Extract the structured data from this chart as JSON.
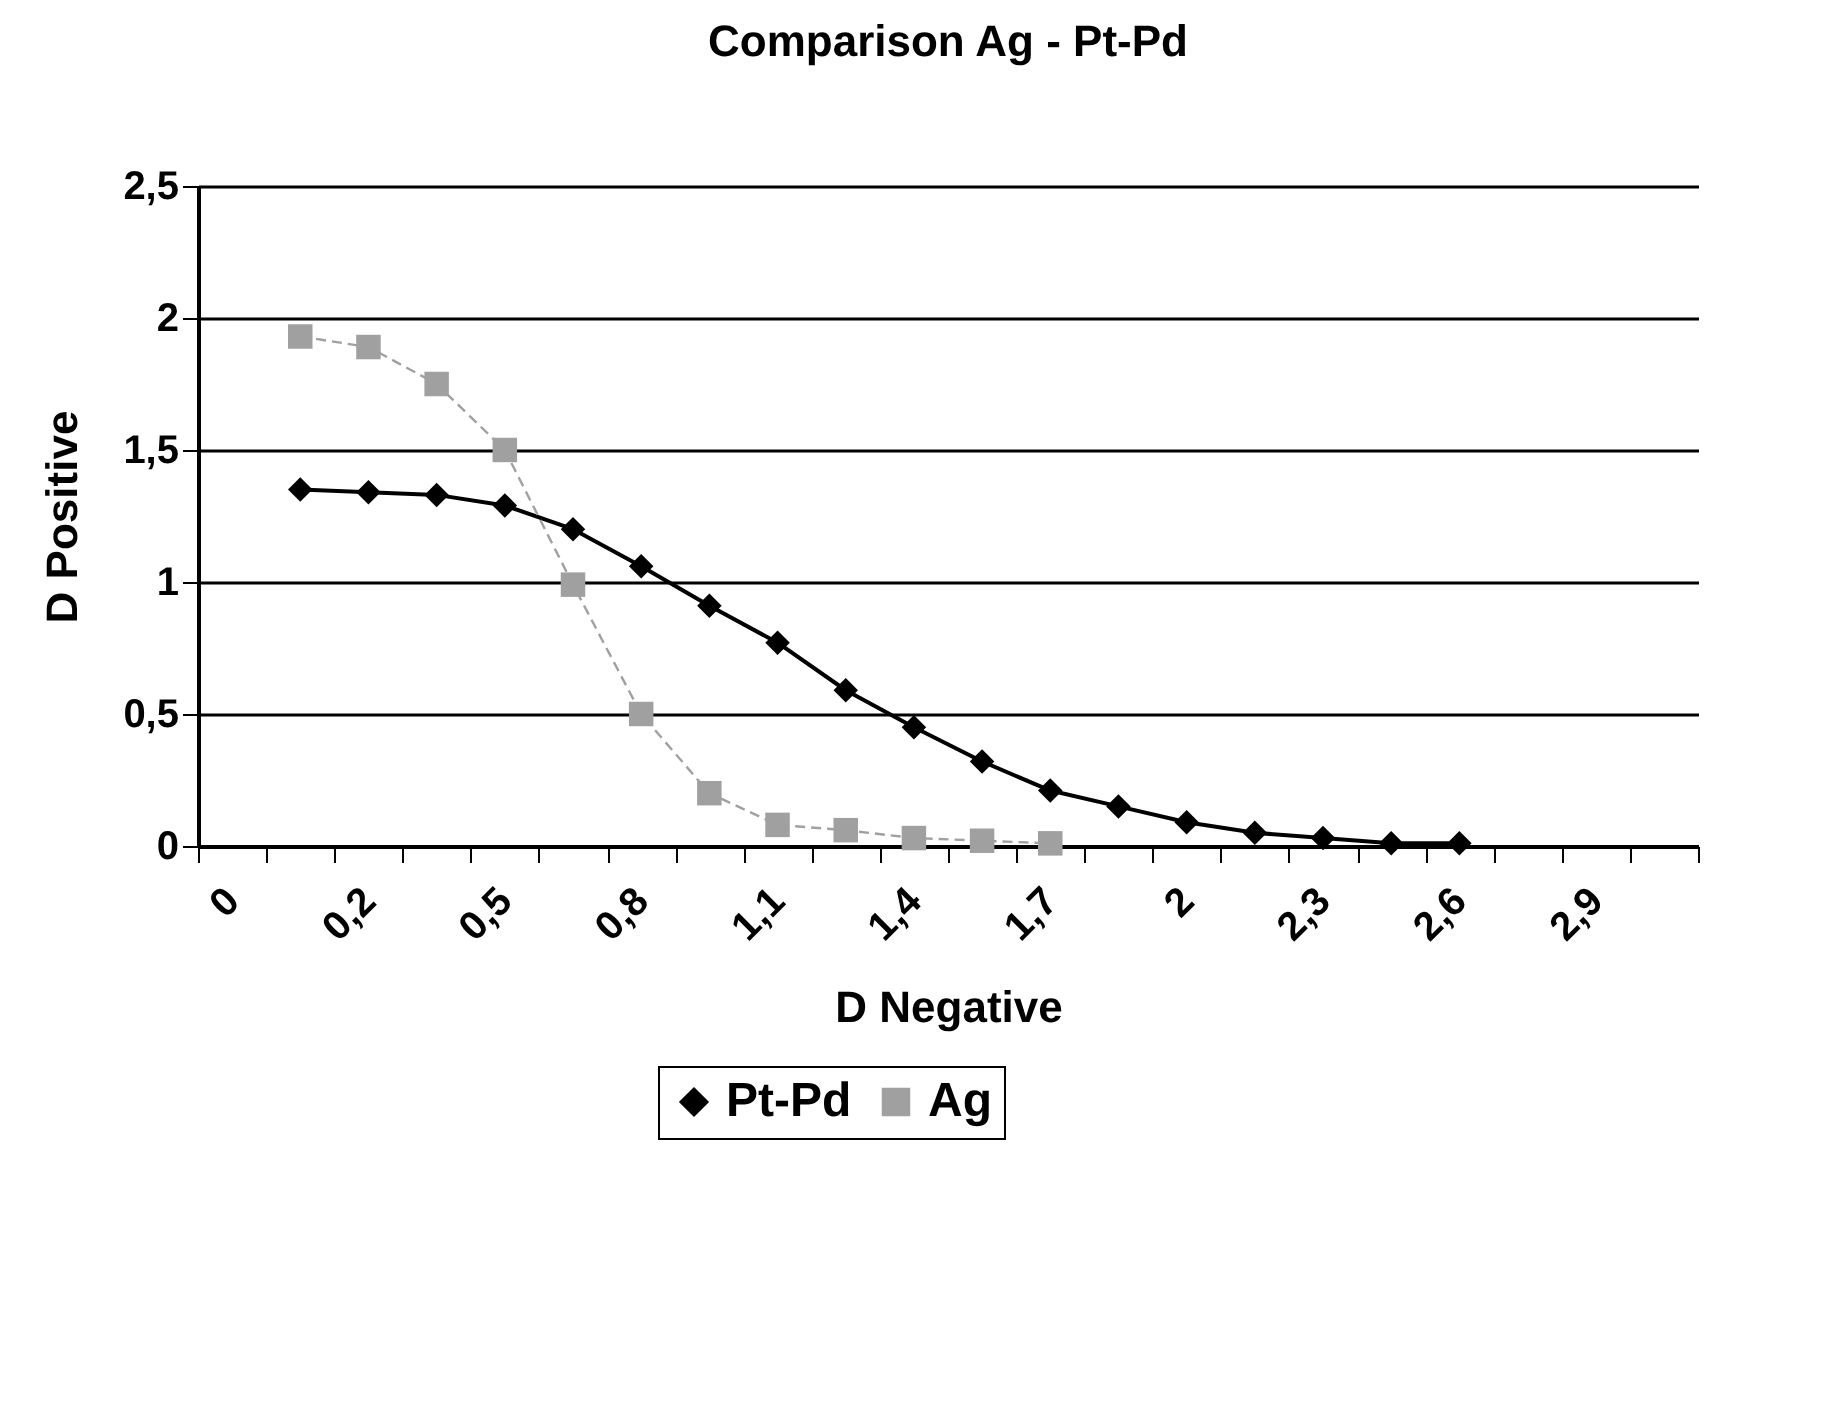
{
  "chart_data": {
    "type": "line",
    "title": "Comparison Ag - Pt-Pd",
    "xlabel": "D Negative",
    "ylabel": "D Positive",
    "categories": [
      "0",
      null,
      "0,2",
      null,
      "0,5",
      null,
      "0,8",
      null,
      "1,1",
      null,
      "1,4",
      null,
      "1,7",
      null,
      "2",
      null,
      "2,3",
      null,
      "2,6",
      null,
      "2,9",
      null
    ],
    "series": [
      {
        "name": "Pt-Pd",
        "color": "#000000",
        "marker": "diamond",
        "line_style": "solid",
        "values": [
          null,
          1.35,
          1.34,
          1.33,
          1.29,
          1.2,
          1.06,
          0.91,
          0.77,
          0.59,
          0.45,
          0.32,
          0.21,
          0.15,
          0.09,
          0.05,
          0.03,
          0.01,
          0.01,
          null,
          null,
          null
        ]
      },
      {
        "name": "Ag",
        "color": "#a0a0a0",
        "marker": "square",
        "line_style": "dashed",
        "values": [
          null,
          1.93,
          1.89,
          1.75,
          1.5,
          0.99,
          0.5,
          0.2,
          0.08,
          0.06,
          0.03,
          0.02,
          0.01,
          null,
          null,
          null,
          null,
          null,
          null,
          null,
          null,
          null
        ]
      }
    ],
    "ylim": [
      0,
      2.5
    ],
    "yticks": [
      0,
      {
        "value": 0.5,
        "label": "0,5"
      },
      1,
      {
        "value": 1.5,
        "label": "1,5"
      },
      2,
      {
        "value": 2.5,
        "label": "2,5"
      }
    ],
    "grid": "y",
    "legend": "bottom"
  }
}
